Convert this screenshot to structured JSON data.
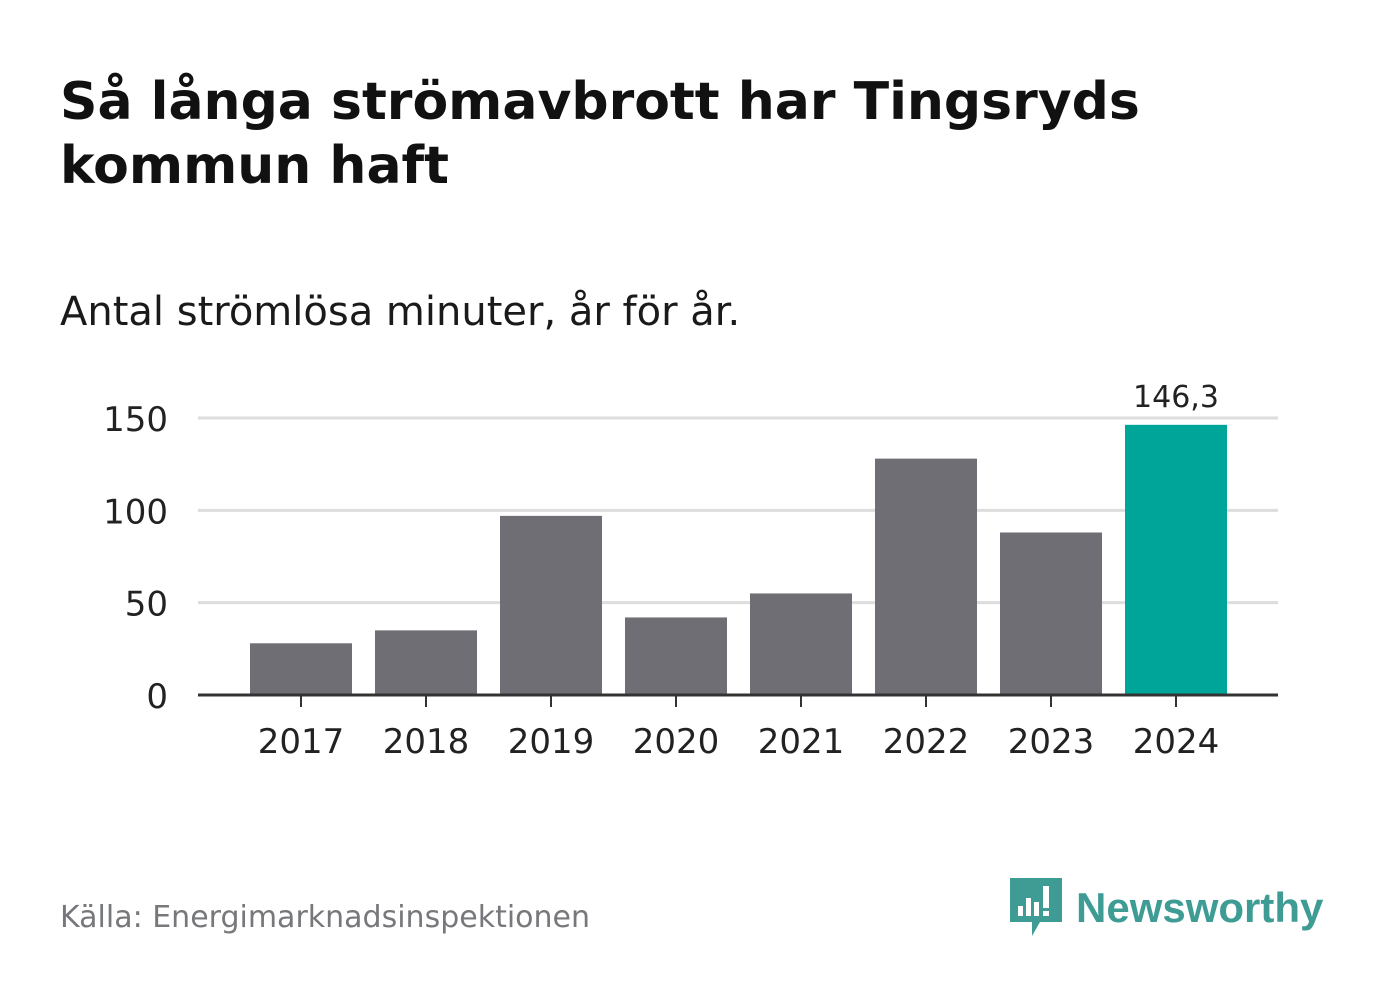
{
  "title": "Så långa strömavbrott har Tingsryds kommun haft",
  "subtitle": "Antal strömlösa minuter, år för år.",
  "source": "Källa: Energimarknadsinspektionen",
  "brand": {
    "name": "Newsworthy",
    "icon": "newsworthy-logo-icon",
    "color": "#3f9c95"
  },
  "colors": {
    "bar": "#6f6e74",
    "highlight": "#00a59a",
    "grid": "#dddddd",
    "axis": "#333333"
  },
  "chart_data": {
    "type": "bar",
    "categories": [
      "2017",
      "2018",
      "2019",
      "2020",
      "2021",
      "2022",
      "2023",
      "2024"
    ],
    "values": [
      28,
      35,
      97,
      42,
      55,
      128,
      88,
      146.3
    ],
    "highlight_index": 7,
    "data_labels": {
      "7": "146,3"
    },
    "yticks": [
      0,
      50,
      100,
      150
    ],
    "ylim": [
      0,
      150
    ],
    "grid": true,
    "legend": false
  }
}
